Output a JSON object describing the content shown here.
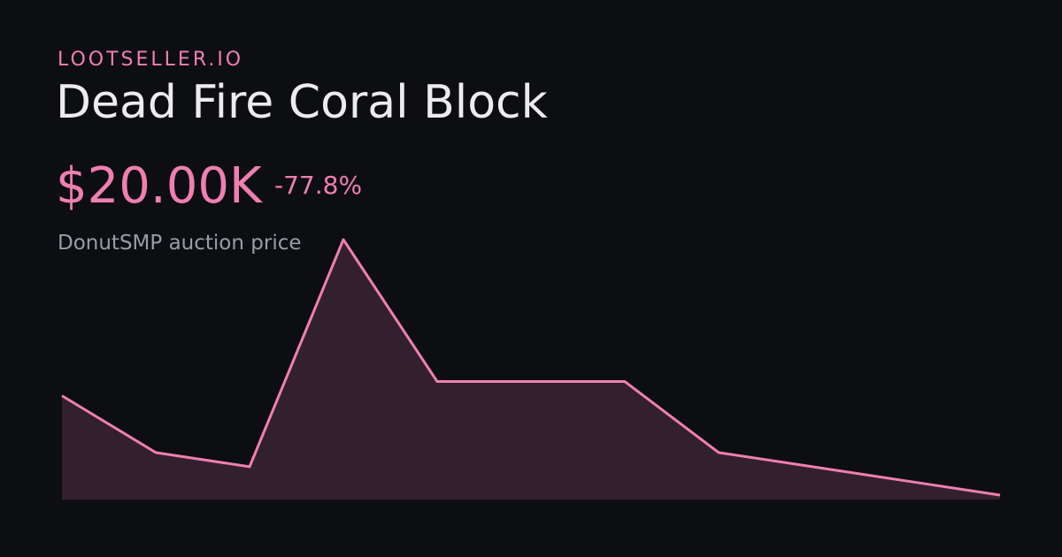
{
  "brand": "LOOTSELLER.IO",
  "title": "Dead Fire Coral Block",
  "price": "$20.00K",
  "change": "-77.8%",
  "subtitle": "DonutSMP auction price",
  "chart_data": {
    "type": "area",
    "values": [
      90000,
      50000,
      40000,
      200000,
      100000,
      100000,
      100000,
      50000,
      40000,
      30000,
      20000
    ],
    "color": "#f07fb0",
    "fill": "#33202d"
  }
}
